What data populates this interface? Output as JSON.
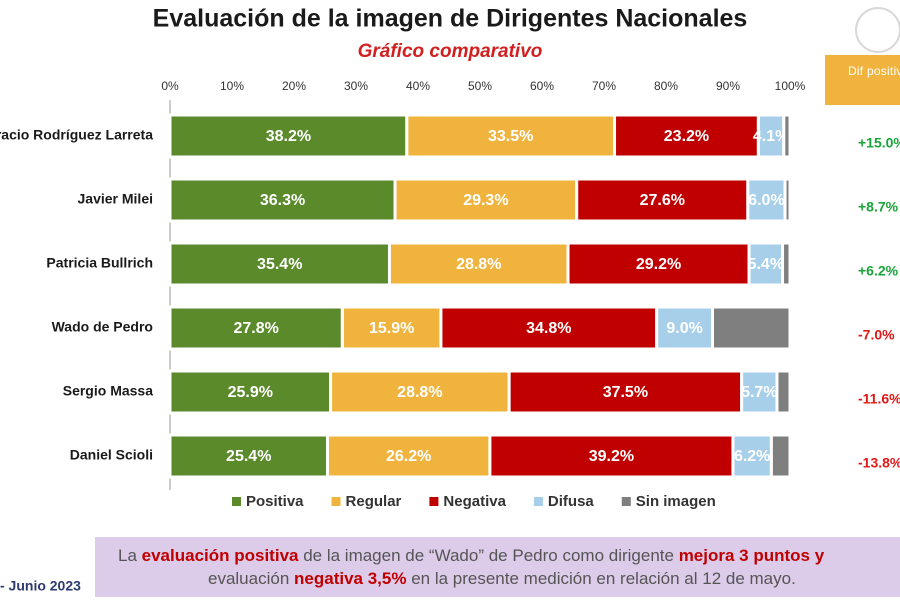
{
  "chart_data": {
    "type": "stacked-bar-horizontal",
    "title": "Evaluación de la imagen de Dirigentes Nacionales",
    "subtitle": "Gráfico comparativo",
    "categories": [
      "Horacio Rodríguez Larreta",
      "Javier Milei",
      "Patricia Bullrich",
      "Wado de Pedro",
      "Sergio Massa",
      "Daniel Scioli"
    ],
    "series": [
      {
        "name": "Positiva",
        "color": "#5b8a2b",
        "values": [
          38.2,
          36.3,
          35.4,
          27.8,
          25.9,
          25.4
        ],
        "value_labels": [
          "38.2%",
          "36.3%",
          "35.4%",
          "27.8%",
          "25.9%",
          "25.4%"
        ]
      },
      {
        "name": "Regular",
        "color": "#f0b43e",
        "values": [
          33.5,
          29.3,
          28.8,
          15.9,
          28.8,
          26.2
        ],
        "value_labels": [
          "33.5%",
          "29.3%",
          "28.8%",
          "15.9%",
          "28.8%",
          "26.2%"
        ]
      },
      {
        "name": "Negativa",
        "color": "#c00000",
        "values": [
          23.2,
          27.6,
          29.2,
          34.8,
          37.5,
          39.2
        ],
        "value_labels": [
          "23.2%",
          "27.6%",
          "29.2%",
          "34.8%",
          "37.5%",
          "39.2%"
        ]
      },
      {
        "name": "Difusa",
        "color": "#a8cfe9",
        "values": [
          4.1,
          6.0,
          5.4,
          9.0,
          5.7,
          6.2
        ],
        "value_labels": [
          "4.1%",
          "6.0%",
          "5.4%",
          "9.0%",
          "5.7%",
          "6.2%"
        ]
      },
      {
        "name": "Sin imagen",
        "color": "#7f7f7f",
        "values": [
          1.0,
          0.8,
          1.2,
          12.5,
          2.1,
          3.0
        ]
      }
    ],
    "xlim": [
      0,
      100
    ],
    "xticks": [
      {
        "value": 0,
        "label": "0%"
      },
      {
        "value": 10,
        "label": "10%"
      },
      {
        "value": 20,
        "label": "20%"
      },
      {
        "value": 30,
        "label": "30%"
      },
      {
        "value": 40,
        "label": "40%"
      },
      {
        "value": 50,
        "label": "50%"
      },
      {
        "value": 60,
        "label": "60%"
      },
      {
        "value": 70,
        "label": "70%"
      },
      {
        "value": 80,
        "label": "80%"
      },
      {
        "value": 90,
        "label": "90%"
      },
      {
        "value": 100,
        "label": "100%"
      }
    ],
    "legend": "bottom",
    "difference": {
      "title": "Dif positiva - negativa",
      "values": [
        15.0,
        8.7,
        6.2,
        -7.0,
        -11.6,
        -13.8
      ],
      "value_labels": [
        "+15.0%",
        "+8.7%",
        "+6.2%",
        "-7.0%",
        "-11.6%",
        "-13.8%"
      ]
    }
  },
  "footer": {
    "date": "- Junio 2023",
    "note": [
      [
        {
          "text": "La ",
          "emphasis": false
        },
        {
          "text": "evaluación positiva",
          "emphasis": true
        },
        {
          "text": " de la imagen de “Wado” de Pedro como dirigente ",
          "emphasis": false
        },
        {
          "text": "mejora 3 puntos y",
          "emphasis": true
        }
      ],
      [
        {
          "text": "evaluación ",
          "emphasis": false
        },
        {
          "text": "negativa 3,5%",
          "emphasis": true
        },
        {
          "text": " en la presente medición en relación al 12 de mayo.",
          "emphasis": false
        }
      ]
    ]
  }
}
